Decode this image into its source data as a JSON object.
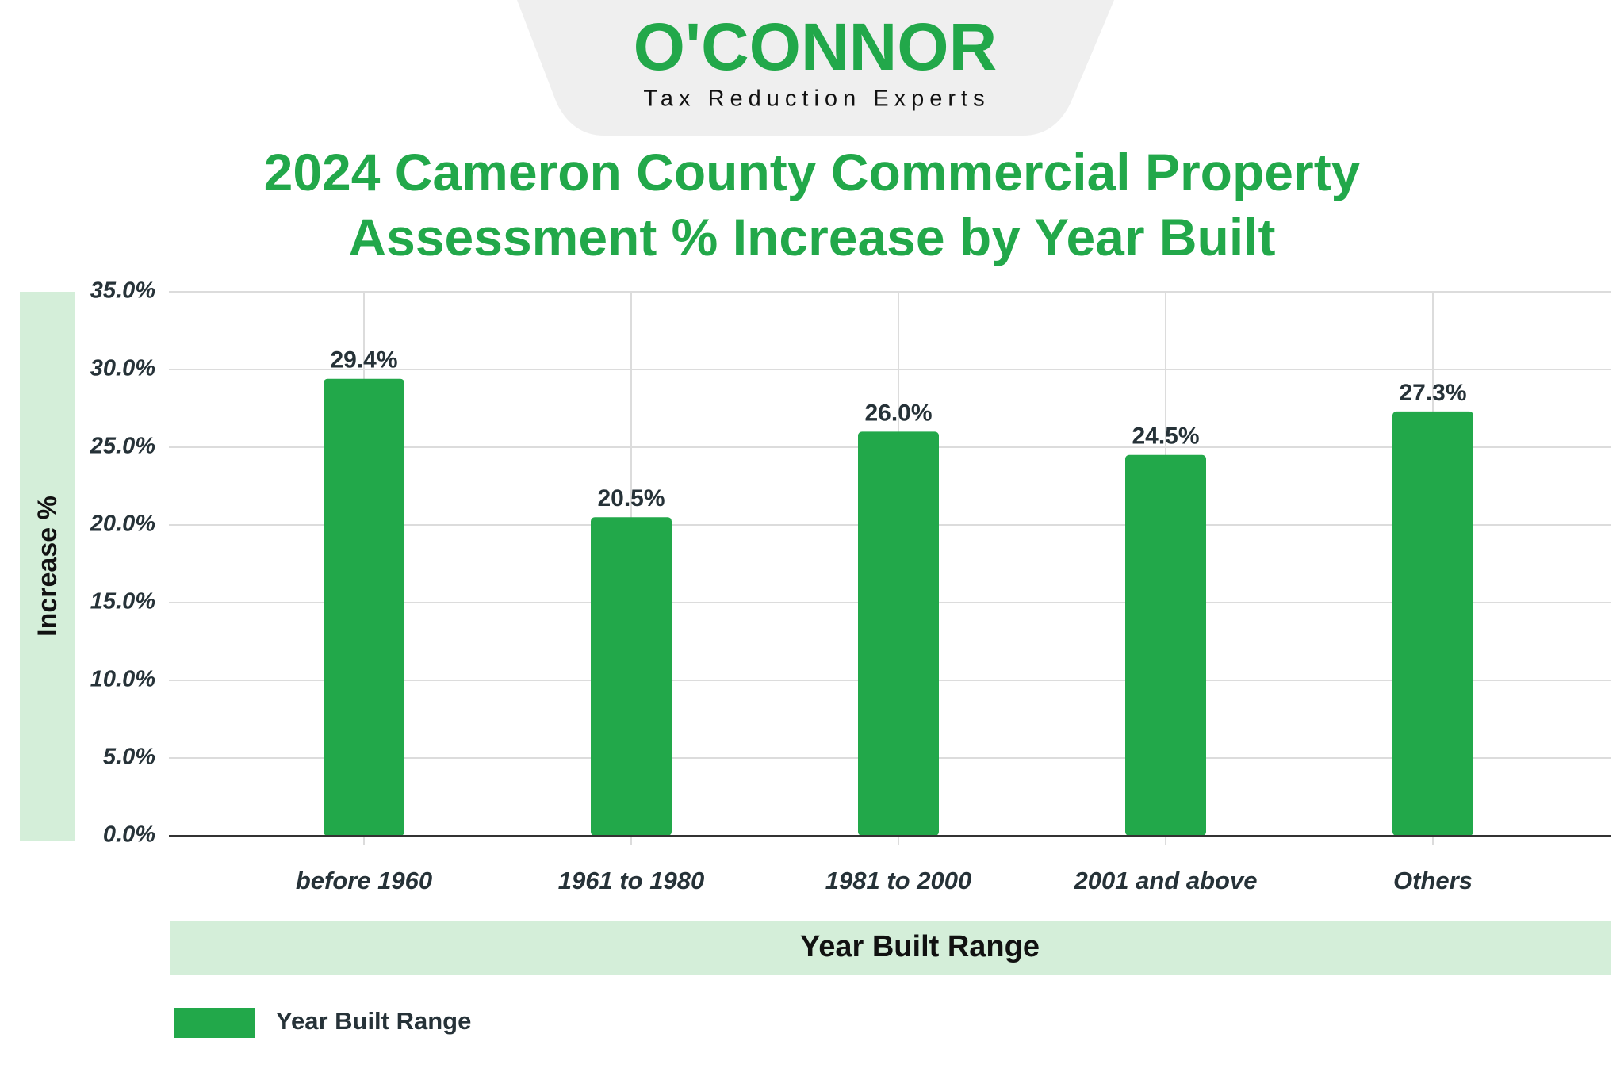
{
  "logo": {
    "brand": "O'CONNOR",
    "tagline": "Tax Reduction Experts"
  },
  "chart_data": {
    "type": "bar",
    "title": "2024 Cameron County Commercial Property Assessment % Increase by Year Built",
    "x_label": "Year Built Range",
    "y_label": "Increase %",
    "categories": [
      "before 1960",
      "1961 to 1980",
      "1981 to 2000",
      "2001 and above",
      "Others"
    ],
    "series": [
      {
        "name": "Year Built Range",
        "color": "#22a84a",
        "values": [
          29.4,
          20.5,
          26.0,
          24.5,
          27.3
        ],
        "value_labels": [
          "29.4%",
          "20.5%",
          "26.0%",
          "24.5%",
          "27.3%"
        ]
      }
    ],
    "ylim": [
      0,
      35
    ],
    "yticks": [
      {
        "value": 0,
        "label": "0.0%"
      },
      {
        "value": 5,
        "label": "5.0%"
      },
      {
        "value": 10,
        "label": "10.0%"
      },
      {
        "value": 15,
        "label": "15.0%"
      },
      {
        "value": 20,
        "label": "20.0%"
      },
      {
        "value": 25,
        "label": "25.0%"
      },
      {
        "value": 30,
        "label": "30.0%"
      },
      {
        "value": 35,
        "label": "35.0%"
      }
    ],
    "grid": true,
    "legend": "bottom-left"
  }
}
